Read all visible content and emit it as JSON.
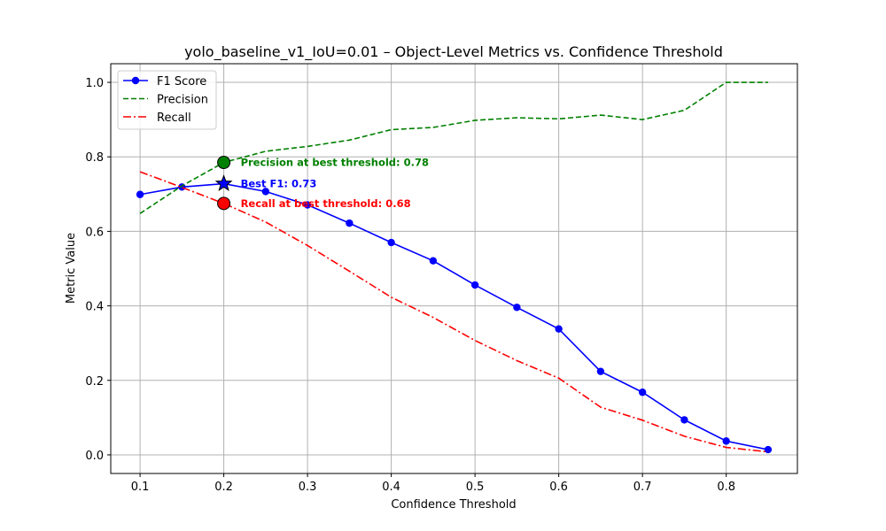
{
  "chart_data": {
    "type": "line",
    "title": "yolo_baseline_v1_IoU=0.01 – Object-Level Metrics vs. Confidence Threshold",
    "xlabel": "Confidence Threshold",
    "ylabel": "Metric Value",
    "xlim": [
      0.065,
      0.885
    ],
    "ylim": [
      -0.05,
      1.05
    ],
    "xticks": [
      "0.1",
      "0.2",
      "0.3",
      "0.4",
      "0.5",
      "0.6",
      "0.7",
      "0.8"
    ],
    "yticks": [
      "0.0",
      "0.2",
      "0.4",
      "0.6",
      "0.8",
      "1.0"
    ],
    "grid": true,
    "legend_position": "top-left",
    "x": [
      0.1,
      0.15,
      0.2,
      0.25,
      0.3,
      0.35,
      0.4,
      0.45,
      0.5,
      0.55,
      0.6,
      0.65,
      0.7,
      0.75,
      0.8,
      0.85
    ],
    "series": [
      {
        "name": "F1 Score",
        "color": "#0000ff",
        "style": "solid-markers",
        "values": [
          0.699,
          0.719,
          0.728,
          0.707,
          0.671,
          0.622,
          0.57,
          0.521,
          0.456,
          0.396,
          0.338,
          0.224,
          0.168,
          0.094,
          0.037,
          0.014
        ]
      },
      {
        "name": "Precision",
        "color": "#008000",
        "style": "dashed",
        "values": [
          0.648,
          0.722,
          0.785,
          0.815,
          0.828,
          0.845,
          0.873,
          0.879,
          0.898,
          0.905,
          0.902,
          0.912,
          0.9,
          0.925,
          1.0,
          1.0
        ]
      },
      {
        "name": "Recall",
        "color": "#ff0000",
        "style": "dashdot",
        "values": [
          0.76,
          0.718,
          0.675,
          0.625,
          0.562,
          0.493,
          0.423,
          0.369,
          0.307,
          0.253,
          0.206,
          0.128,
          0.093,
          0.05,
          0.02,
          0.008
        ]
      }
    ],
    "annotations": [
      {
        "name": "precision-best",
        "x": 0.2,
        "y": 0.785,
        "marker": "circle",
        "color": "#008000",
        "text": "Precision at best threshold: 0.78"
      },
      {
        "name": "f1-best",
        "x": 0.2,
        "y": 0.728,
        "marker": "star",
        "color": "#0000ff",
        "text": "Best F1: 0.73"
      },
      {
        "name": "recall-best",
        "x": 0.2,
        "y": 0.675,
        "marker": "circle",
        "color": "#ff0000",
        "text": "Recall at best threshold: 0.68"
      }
    ]
  }
}
